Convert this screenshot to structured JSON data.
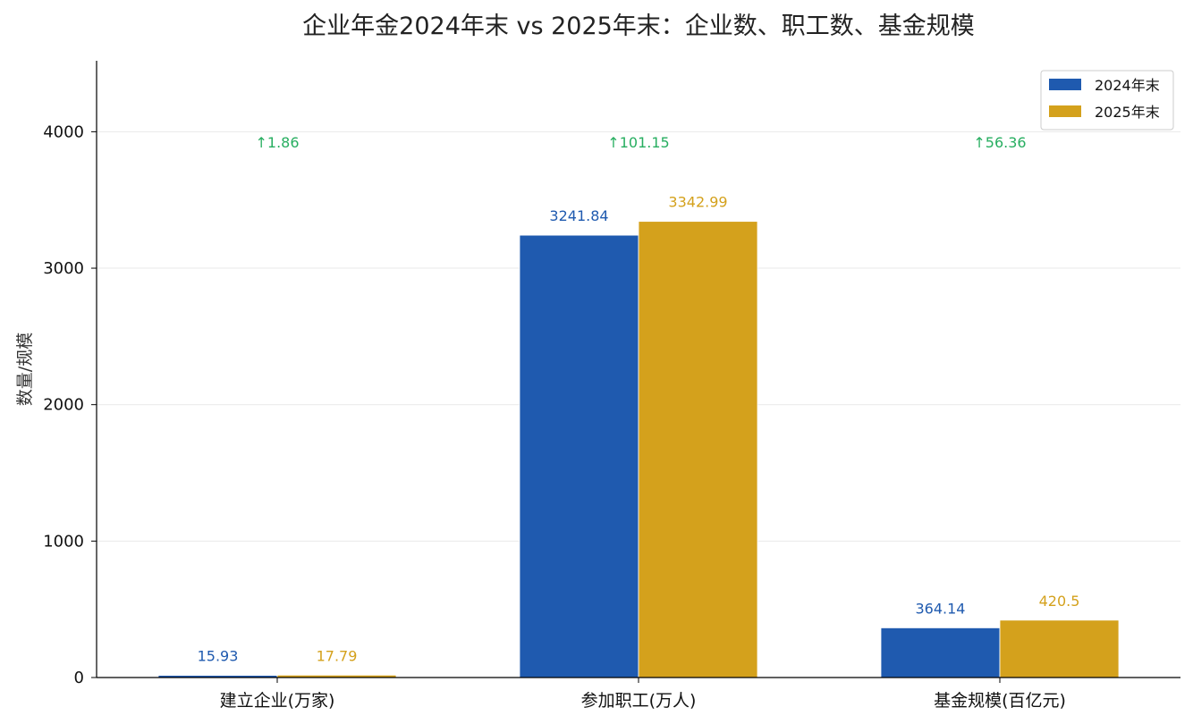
{
  "chart_data": {
    "type": "bar",
    "title": "企业年金2024年末 vs 2025年末：企业数、职工数、基金规模",
    "xlabel": "",
    "ylabel": "数量/规模",
    "categories": [
      "建立企业(万家)",
      "参加职工(万人)",
      "基金规模(百亿元)"
    ],
    "series": [
      {
        "name": "2024年末",
        "values": [
          15.93,
          3241.84,
          364.14
        ],
        "color": "#1f5aaf"
      },
      {
        "name": "2025年末",
        "values": [
          17.79,
          3342.99,
          420.5
        ],
        "color": "#d4a11c"
      }
    ],
    "value_labels": [
      [
        "15.93",
        "3241.84",
        "364.14"
      ],
      [
        "17.79",
        "3342.99",
        "420.5"
      ]
    ],
    "annotations": [
      "↑1.86",
      "↑101.15",
      "↑56.36"
    ],
    "annotation_color": "#27ae60",
    "ylim": [
      0,
      4520
    ],
    "yticks": [
      0,
      1000,
      2000,
      3000,
      4000
    ],
    "ytick_labels": [
      "0",
      "1000",
      "2000",
      "3000",
      "4000"
    ],
    "grid": true,
    "legend_position": "top-right"
  }
}
